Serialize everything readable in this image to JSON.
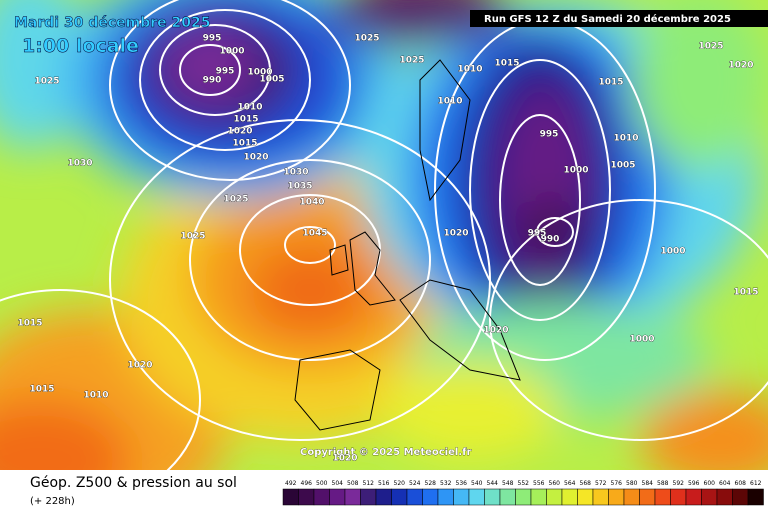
{
  "header": {
    "date": "Mardi 30 décembre 2025",
    "time": "1:00 locale",
    "run": "Run GFS 12 Z du Samedi 20 décembre 2025"
  },
  "copyright": "Copyright © 2025 Meteociel.fr",
  "footer": {
    "title": "Géop. Z500 & pression au sol",
    "lead": "(+ 228h)"
  },
  "legend": {
    "levels": [
      492,
      496,
      500,
      504,
      508,
      512,
      516,
      520,
      524,
      528,
      532,
      536,
      540,
      544,
      548,
      552,
      556,
      560,
      564,
      568,
      572,
      576,
      580,
      584,
      588,
      592,
      596,
      600,
      604,
      608,
      612
    ],
    "colors": [
      "#2a0536",
      "#3d0a4c",
      "#52106a",
      "#661a85",
      "#7a2a9a",
      "#3d1e78",
      "#1e1e8c",
      "#1530b4",
      "#1a4fd8",
      "#1f6ff0",
      "#2e95f5",
      "#45b8f5",
      "#5fd6ee",
      "#6fe0c8",
      "#7ee6a0",
      "#8eec78",
      "#a6ef5a",
      "#c4f040",
      "#e0f030",
      "#f5e626",
      "#f8c81e",
      "#f8aa1a",
      "#f58c18",
      "#f26c18",
      "#ee4c1a",
      "#e0301c",
      "#c81c1c",
      "#a81414",
      "#880c0c",
      "#5c0606",
      "#1a0000"
    ]
  },
  "isobar_labels": [
    995,
    1000,
    995,
    990,
    1000,
    1005,
    1010,
    1015,
    1020,
    1015,
    1020,
    1025,
    1030,
    1025,
    1025,
    1030,
    1035,
    1040,
    1045,
    1015,
    1020,
    1015,
    1010,
    1025,
    1025,
    1010,
    1015,
    1010,
    995,
    1000,
    995,
    990,
    1020,
    1020,
    1000,
    1000,
    1005,
    1010,
    1015,
    1025,
    1020,
    1015,
    1020
  ]
}
